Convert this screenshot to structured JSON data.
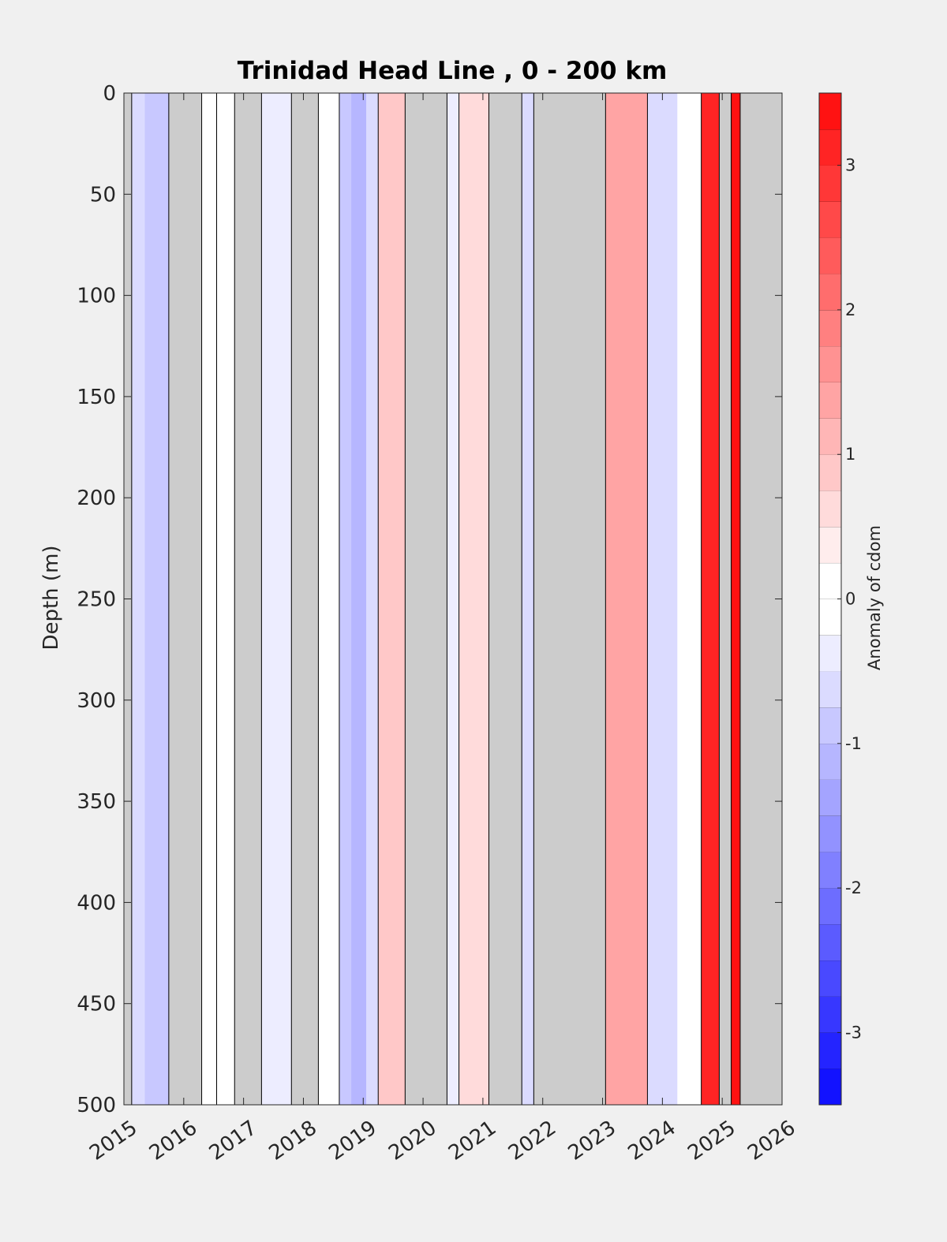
{
  "chart_data": {
    "type": "heatmap",
    "title": "Trinidad Head Line , 0 - 200 km",
    "ylabel": "Depth (m)",
    "xlabel": "",
    "xlim": [
      2015,
      2026
    ],
    "ylim": [
      0,
      500
    ],
    "y_reversed": true,
    "x_ticks": [
      "2015",
      "2016",
      "2017",
      "2018",
      "2019",
      "2020",
      "2021",
      "2022",
      "2023",
      "2024",
      "2025",
      "2026"
    ],
    "y_ticks": [
      "0",
      "50",
      "100",
      "150",
      "200",
      "250",
      "300",
      "350",
      "400",
      "450",
      "500"
    ],
    "missing_color": "#cccccc",
    "colorbar": {
      "label": "Anomaly of cdom",
      "ticks": [
        "-3",
        "-2",
        "-1",
        "0",
        "1",
        "2",
        "3"
      ],
      "range": [
        -3.5,
        3.5
      ],
      "level_step": 0.25,
      "colors": [
        "#ff0000",
        "#0000ff",
        "#ffffff"
      ]
    },
    "bands": [
      {
        "t0": 2015.0,
        "t1": 2015.13,
        "value": null
      },
      {
        "t0": 2015.13,
        "t1": 2015.35,
        "value": -0.6
      },
      {
        "t0": 2015.35,
        "t1": 2015.75,
        "value": -0.8
      },
      {
        "t0": 2015.75,
        "t1": 2016.3,
        "value": null
      },
      {
        "t0": 2016.3,
        "t1": 2016.55,
        "value": 0.0
      },
      {
        "t0": 2016.55,
        "t1": 2016.85,
        "value": 0.05
      },
      {
        "t0": 2016.85,
        "t1": 2017.3,
        "value": null
      },
      {
        "t0": 2017.3,
        "t1": 2017.8,
        "value": -0.4
      },
      {
        "t0": 2017.8,
        "t1": 2018.25,
        "value": null
      },
      {
        "t0": 2018.25,
        "t1": 2018.6,
        "value": 0.2
      },
      {
        "t0": 2018.6,
        "t1": 2018.8,
        "value": -0.9
      },
      {
        "t0": 2018.8,
        "t1": 2019.05,
        "value": -1.2
      },
      {
        "t0": 2019.05,
        "t1": 2019.25,
        "value": -0.6
      },
      {
        "t0": 2019.25,
        "t1": 2019.7,
        "value": 0.8
      },
      {
        "t0": 2019.7,
        "t1": 2020.4,
        "value": null
      },
      {
        "t0": 2020.4,
        "t1": 2020.6,
        "value": -0.3
      },
      {
        "t0": 2020.6,
        "t1": 2021.1,
        "value": 0.7
      },
      {
        "t0": 2021.1,
        "t1": 2021.65,
        "value": null
      },
      {
        "t0": 2021.65,
        "t1": 2021.85,
        "value": -0.5
      },
      {
        "t0": 2021.85,
        "t1": 2023.05,
        "value": null
      },
      {
        "t0": 2023.05,
        "t1": 2023.75,
        "value": 1.3
      },
      {
        "t0": 2023.75,
        "t1": 2024.25,
        "value": -0.5
      },
      {
        "t0": 2024.25,
        "t1": 2024.65,
        "value": -0.2
      },
      {
        "t0": 2024.65,
        "t1": 2024.95,
        "value": 3.2
      },
      {
        "t0": 2024.95,
        "t1": 2025.15,
        "value": null
      },
      {
        "t0": 2025.15,
        "t1": 2025.3,
        "value": 3.4
      },
      {
        "t0": 2025.3,
        "t1": 2026.0,
        "value": null
      }
    ]
  }
}
